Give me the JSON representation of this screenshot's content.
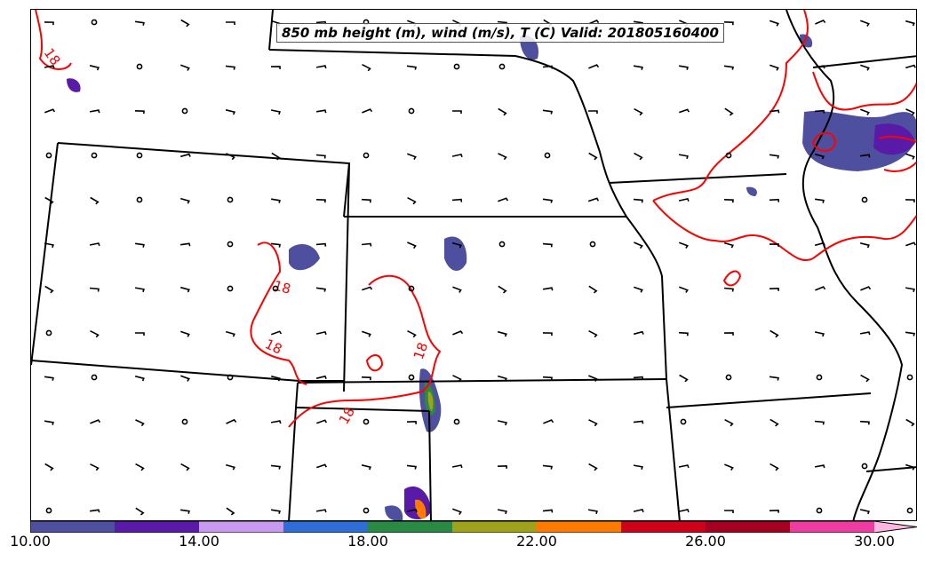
{
  "title": "850 mb height (m), wind (m/s), T (C) Valid: 201805160400",
  "contour_labels": [
    "18",
    "18",
    "18",
    "18",
    "18"
  ],
  "colorbar": {
    "ticks": [
      "10.00",
      "14.00",
      "18.00",
      "22.00",
      "26.00",
      "30.00"
    ],
    "colors": [
      "#4e4f9e",
      "#5a1aa8",
      "#c89af0",
      "#2e6ed6",
      "#2a8a45",
      "#a0a21c",
      "#ff7a00",
      "#d0021b",
      "#a50021",
      "#f03ca0",
      "#ffb6e0"
    ]
  },
  "colors": {
    "contour": "#ff0000",
    "boundary": "#000000",
    "barb": "#000000"
  }
}
